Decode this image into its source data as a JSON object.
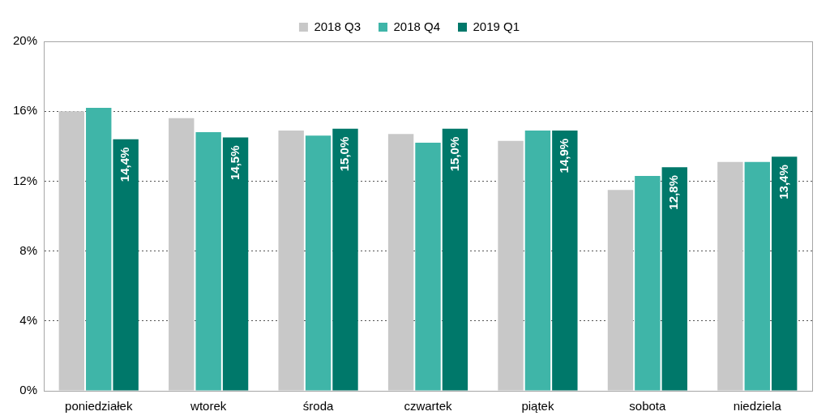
{
  "chart_data": {
    "type": "bar",
    "categories": [
      "poniedziałek",
      "wtorek",
      "środa",
      "czwartek",
      "piątek",
      "sobota",
      "niedziela"
    ],
    "series": [
      {
        "name": "2018 Q3",
        "color": "#c8c8c8",
        "values": [
          16.0,
          15.6,
          14.9,
          14.7,
          14.3,
          11.5,
          13.1
        ]
      },
      {
        "name": "2018 Q4",
        "color": "#3fb5a8",
        "values": [
          16.2,
          14.8,
          14.6,
          14.2,
          14.9,
          12.3,
          13.1
        ]
      },
      {
        "name": "2019 Q1",
        "color": "#00786a",
        "values": [
          14.4,
          14.5,
          15.0,
          15.0,
          14.9,
          12.8,
          13.4
        ],
        "data_labels": true,
        "value_labels": [
          "14,4%",
          "14,5%",
          "15,0%",
          "15,0%",
          "14,9%",
          "12,8%",
          "13,4%"
        ]
      }
    ],
    "ylim": [
      0,
      20
    ],
    "yticks": [
      {
        "value": 0,
        "label": "0%"
      },
      {
        "value": 4,
        "label": "4%"
      },
      {
        "value": 8,
        "label": "8%"
      },
      {
        "value": 12,
        "label": "12%"
      },
      {
        "value": 16,
        "label": "16%"
      },
      {
        "value": 20,
        "label": "20%"
      }
    ],
    "grid": true,
    "legend": "top"
  }
}
